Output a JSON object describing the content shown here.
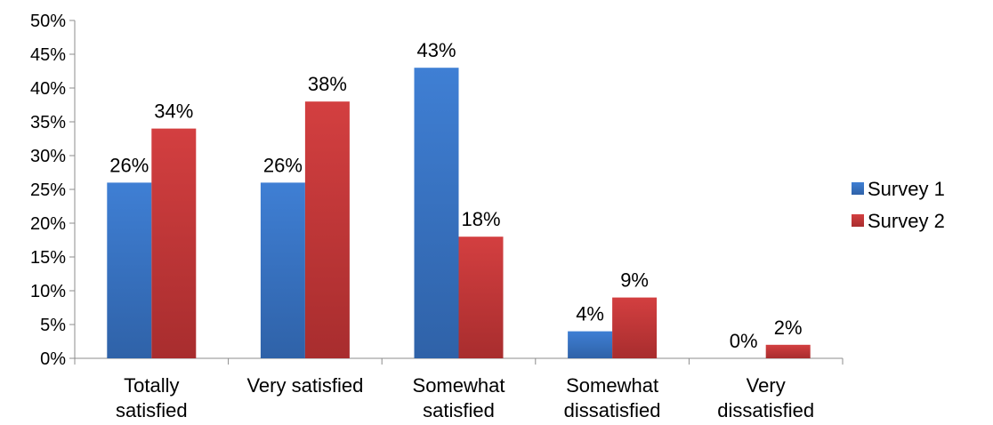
{
  "chart_data": {
    "type": "bar",
    "categories": [
      [
        "Totally",
        "satisfied"
      ],
      [
        "Very satisfied"
      ],
      [
        "Somewhat",
        "satisfied"
      ],
      [
        "Somewhat",
        "dissatisfied"
      ],
      [
        "Very",
        "dissatisfied"
      ]
    ],
    "series": [
      {
        "name": "Survey 1",
        "color": "#3a77c9",
        "values": [
          26,
          26,
          43,
          4,
          0
        ],
        "labels": [
          "26%",
          "26%",
          "43%",
          "4%",
          "0%"
        ]
      },
      {
        "name": "Survey 2",
        "color": "#c9383a",
        "values": [
          34,
          38,
          18,
          9,
          2
        ],
        "labels": [
          "34%",
          "38%",
          "18%",
          "9%",
          "2%"
        ]
      }
    ],
    "ylim": [
      0,
      50
    ],
    "ytick_values": [
      0,
      5,
      10,
      15,
      20,
      25,
      30,
      35,
      40,
      45,
      50
    ],
    "ytick_labels": [
      "0%",
      "5%",
      "10%",
      "15%",
      "20%",
      "25%",
      "30%",
      "35%",
      "40%",
      "45%",
      "50%"
    ],
    "grid": false,
    "legend_position": "right"
  }
}
